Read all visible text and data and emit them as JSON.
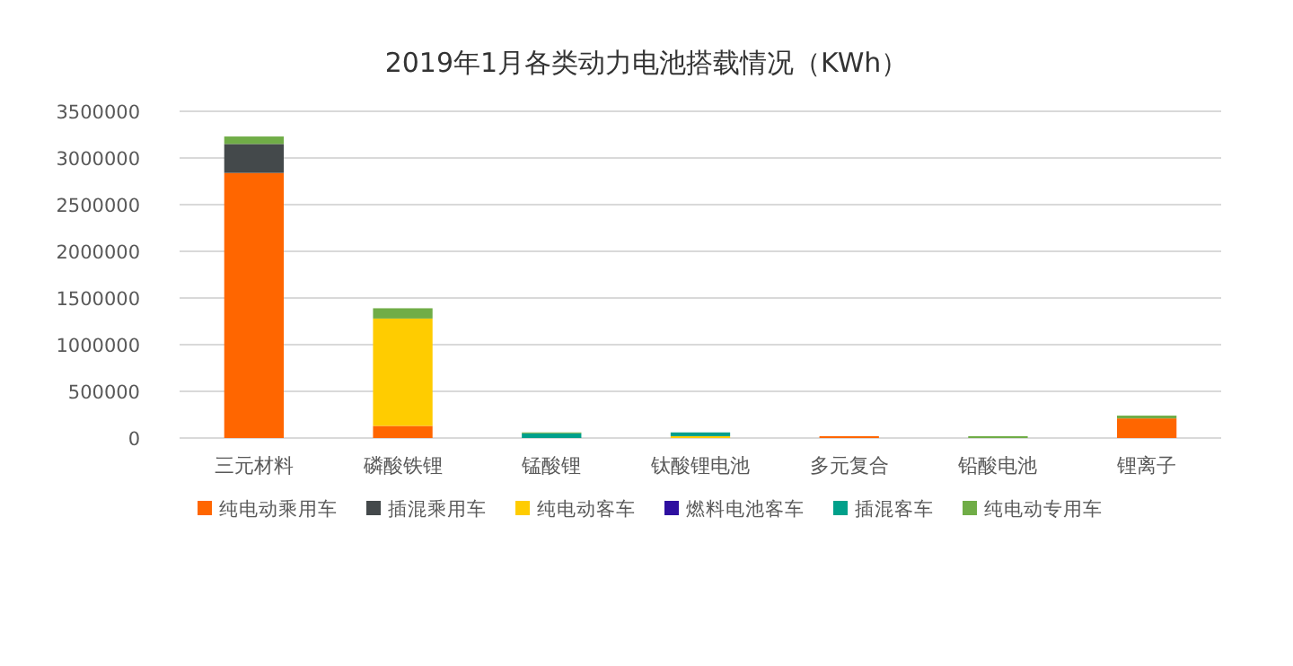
{
  "chart_data": {
    "type": "bar",
    "title": "2019年1月各类动力电池搭载情况（KWh）",
    "stacked": true,
    "legend": "bottom",
    "grid": "y",
    "categories": [
      "三元材料",
      "磷酸铁锂",
      "锰酸锂",
      "钛酸锂电池",
      "多元复合",
      "铅酸电池",
      "锂离子"
    ],
    "ylim": [
      0,
      3500000
    ],
    "yticks": [
      0,
      500000,
      1000000,
      1500000,
      2000000,
      2500000,
      3000000,
      3500000
    ],
    "series": [
      {
        "name": "纯电动乘用车",
        "color": "#ff6600",
        "values": [
          2840000,
          130000,
          0,
          0,
          20000,
          0,
          210000
        ]
      },
      {
        "name": "插混乘用车",
        "color": "#44494b",
        "values": [
          310000,
          0,
          0,
          0,
          0,
          0,
          0
        ]
      },
      {
        "name": "纯电动客车",
        "color": "#ffcc00",
        "values": [
          0,
          1150000,
          0,
          20000,
          0,
          0,
          0
        ]
      },
      {
        "name": "燃料电池客车",
        "color": "#2e0fa0",
        "values": [
          0,
          0,
          0,
          0,
          0,
          0,
          0
        ]
      },
      {
        "name": "插混客车",
        "color": "#00a08a",
        "values": [
          0,
          0,
          50000,
          40000,
          0,
          0,
          0
        ]
      },
      {
        "name": "纯电动专用车",
        "color": "#70ad47",
        "values": [
          80000,
          110000,
          10000,
          0,
          0,
          20000,
          30000
        ]
      }
    ]
  }
}
